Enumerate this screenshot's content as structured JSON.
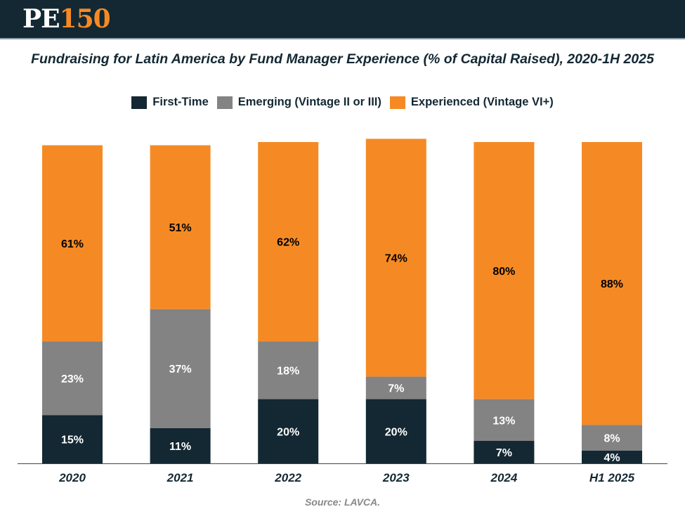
{
  "logo": {
    "text_a": "PE",
    "text_b": "150"
  },
  "chart_data": {
    "type": "stacked-bar",
    "title": "Fundraising for Latin America by Fund Manager Experience (% of Capital Raised), 2020-1H 2025",
    "categories": [
      "2020",
      "2021",
      "2022",
      "2023",
      "2024",
      "H1 2025"
    ],
    "series": [
      {
        "name": "First-Time",
        "color": "#132833",
        "label_color": "#ffffff",
        "values": [
          15,
          11,
          20,
          20,
          7,
          4
        ]
      },
      {
        "name": "Emerging (Vintage II or III)",
        "color": "#838383",
        "label_color": "#ffffff",
        "values": [
          23,
          37,
          18,
          7,
          13,
          8
        ]
      },
      {
        "name": "Experienced (Vintage VI+)",
        "color": "#f58a25",
        "label_color": "#000000",
        "values": [
          61,
          51,
          62,
          74,
          80,
          88
        ]
      }
    ],
    "ylim": [
      0,
      100
    ],
    "legend": "top-center",
    "grid": false,
    "source": "Source: LAVCA."
  }
}
